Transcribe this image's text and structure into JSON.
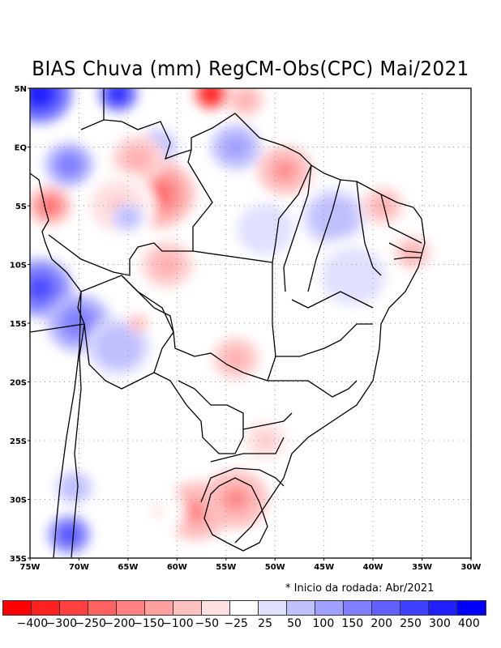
{
  "title": "BIAS Chuva (mm) RegCM-Obs(CPC) Mai/2021",
  "note": "* Inicio da rodada: Abr/2021",
  "axes": {
    "lat_labels": [
      "5N",
      "EQ",
      "5S",
      "10S",
      "15S",
      "20S",
      "25S",
      "30S",
      "35S"
    ],
    "lon_labels": [
      "75W",
      "70W",
      "65W",
      "60W",
      "55W",
      "50W",
      "45W",
      "40W",
      "35W",
      "30W"
    ],
    "lat_values": [
      5,
      0,
      -5,
      -10,
      -15,
      -20,
      -25,
      -30,
      -35
    ],
    "lon_values": [
      -75,
      -70,
      -65,
      -60,
      -55,
      -50,
      -45,
      -40,
      -35,
      -30
    ]
  },
  "colorbar": {
    "colors": [
      "#ff0000",
      "#ff2020",
      "#ff4040",
      "#ff6060",
      "#ff8080",
      "#ffa0a0",
      "#ffc0c0",
      "#ffe0e0",
      "#ffffff",
      "#e0e0ff",
      "#c0c0ff",
      "#a0a0ff",
      "#8080ff",
      "#6060ff",
      "#4040ff",
      "#2020ff",
      "#0000ff"
    ],
    "labels": [
      "-400",
      "-300",
      "-250",
      "-200",
      "-150",
      "-100",
      "-50",
      "-25",
      "25",
      "50",
      "100",
      "150",
      "200",
      "250",
      "300",
      "400"
    ]
  },
  "chart_data": {
    "type": "heatmap",
    "title": "BIAS Chuva (mm) RegCM-Obs(CPC) Mai/2021",
    "xlabel": "",
    "ylabel": "",
    "xlim": [
      -75,
      -30
    ],
    "ylim": [
      -35,
      5
    ],
    "grid": true,
    "units": "mm",
    "levels": [
      -400,
      -300,
      -250,
      -200,
      -150,
      -100,
      -50,
      -25,
      25,
      50,
      100,
      150,
      200,
      250,
      300,
      400
    ],
    "blobs": [
      {
        "lon": -74,
        "lat": 4.5,
        "value": 400,
        "r": 3
      },
      {
        "lon": -66,
        "lat": 4.5,
        "value": 400,
        "r": 1.8
      },
      {
        "lon": -71,
        "lat": -1.5,
        "value": 200,
        "r": 2.3
      },
      {
        "lon": -62,
        "lat": 0,
        "value": 100,
        "r": 2
      },
      {
        "lon": -56.5,
        "lat": 4.5,
        "value": -400,
        "r": 1.6
      },
      {
        "lon": -53,
        "lat": 4,
        "value": -100,
        "r": 1.8
      },
      {
        "lon": -54,
        "lat": 0,
        "value": 150,
        "r": 2.3
      },
      {
        "lon": -62,
        "lat": -4,
        "value": -200,
        "r": 3.5
      },
      {
        "lon": -64,
        "lat": -1,
        "value": -100,
        "r": 2.5
      },
      {
        "lon": -73,
        "lat": -5,
        "value": -200,
        "r": 2
      },
      {
        "lon": -66,
        "lat": -5,
        "value": -50,
        "r": 3.5
      },
      {
        "lon": -65,
        "lat": -6,
        "value": 100,
        "r": 1.5
      },
      {
        "lon": -49,
        "lat": -2,
        "value": -150,
        "r": 2.5
      },
      {
        "lon": -51,
        "lat": -7,
        "value": 50,
        "r": 3.5
      },
      {
        "lon": -44,
        "lat": -6,
        "value": 100,
        "r": 3
      },
      {
        "lon": -42,
        "lat": -11,
        "value": 50,
        "r": 4
      },
      {
        "lon": -39,
        "lat": -5,
        "value": -100,
        "r": 2
      },
      {
        "lon": -36,
        "lat": -9,
        "value": -100,
        "r": 1.8
      },
      {
        "lon": -74,
        "lat": -12,
        "value": 300,
        "r": 3
      },
      {
        "lon": -70,
        "lat": -15,
        "value": 200,
        "r": 3
      },
      {
        "lon": -66,
        "lat": -17,
        "value": 100,
        "r": 3
      },
      {
        "lon": -61,
        "lat": -10,
        "value": -100,
        "r": 2.5
      },
      {
        "lon": -64,
        "lat": -15,
        "value": -100,
        "r": 1
      },
      {
        "lon": -54,
        "lat": -18,
        "value": -100,
        "r": 2.3
      },
      {
        "lon": -51,
        "lat": -25,
        "value": -50,
        "r": 2.5
      },
      {
        "lon": -58,
        "lat": -31,
        "value": -150,
        "r": 3
      },
      {
        "lon": -54,
        "lat": -30,
        "value": -150,
        "r": 3
      },
      {
        "lon": -62,
        "lat": -31,
        "value": -25,
        "r": 2.5
      },
      {
        "lon": -71,
        "lat": -33,
        "value": 300,
        "r": 2
      },
      {
        "lon": -70.5,
        "lat": -29,
        "value": 100,
        "r": 1.8
      }
    ]
  }
}
